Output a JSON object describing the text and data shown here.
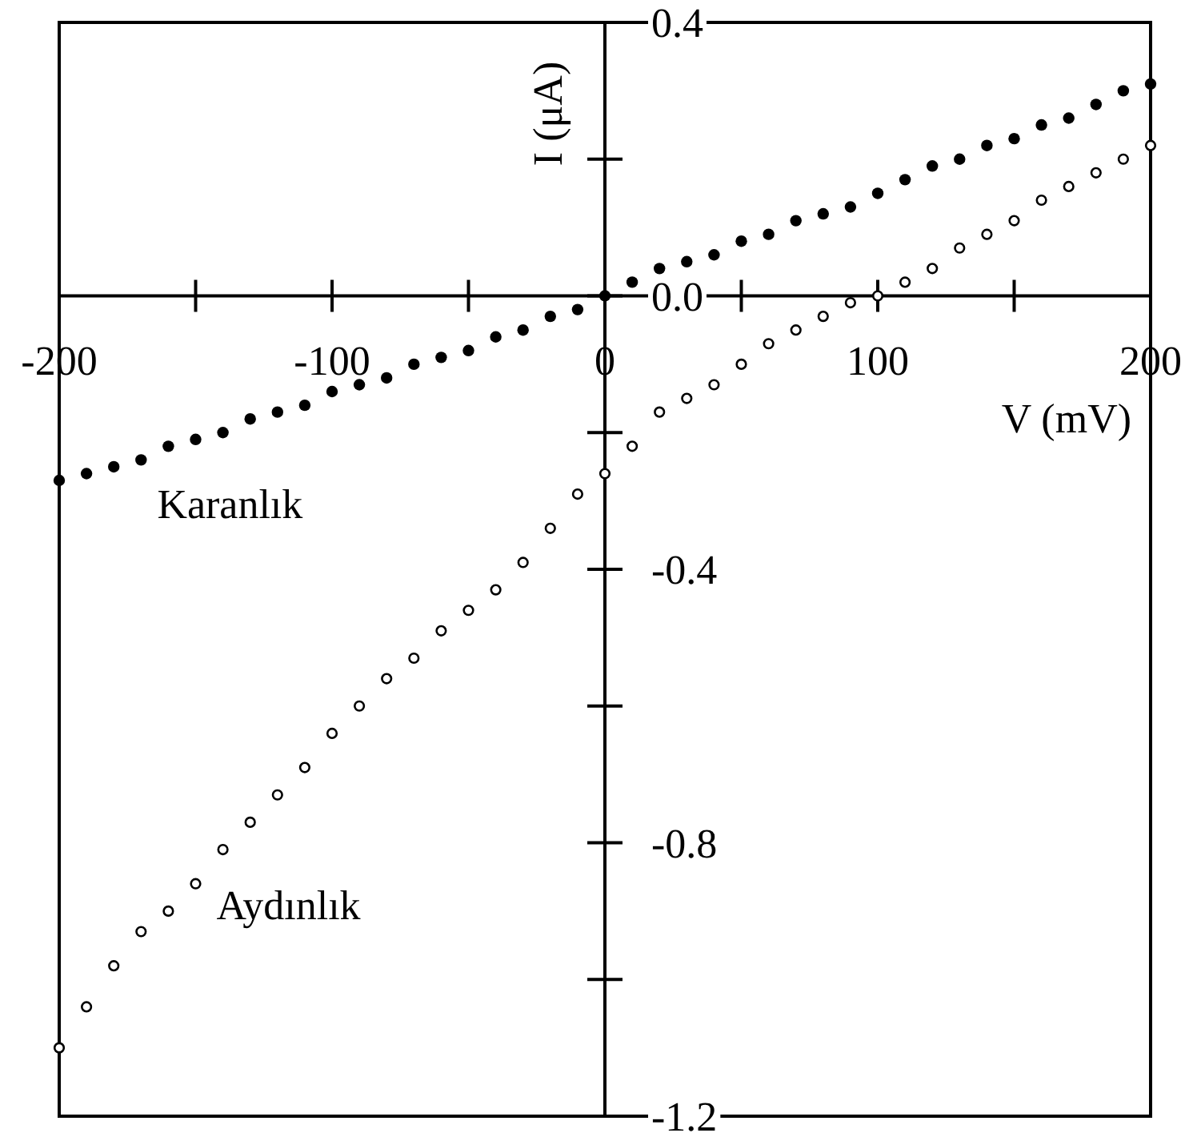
{
  "chart_data": {
    "type": "scatter",
    "xlabel": "V (mV)",
    "ylabel": "I (μA)",
    "x": [
      -200,
      -190,
      -180,
      -170,
      -160,
      -150,
      -140,
      -130,
      -120,
      -110,
      -100,
      -90,
      -80,
      -70,
      -60,
      -50,
      -40,
      -30,
      -20,
      -10,
      0,
      10,
      20,
      30,
      40,
      50,
      60,
      70,
      80,
      90,
      100,
      110,
      120,
      130,
      140,
      150,
      160,
      170,
      180,
      190,
      200
    ],
    "series": [
      {
        "name": "Karanlık",
        "color": "#000000",
        "values": [
          -0.27,
          -0.26,
          -0.25,
          -0.24,
          -0.22,
          -0.21,
          -0.2,
          -0.18,
          -0.17,
          -0.16,
          -0.14,
          -0.13,
          -0.12,
          -0.1,
          -0.09,
          -0.08,
          -0.06,
          -0.05,
          -0.03,
          -0.02,
          0.0,
          0.02,
          0.04,
          0.05,
          0.06,
          0.08,
          0.09,
          0.11,
          0.12,
          0.13,
          0.15,
          0.17,
          0.19,
          0.2,
          0.22,
          0.23,
          0.25,
          0.26,
          0.28,
          0.3,
          0.31
        ]
      },
      {
        "name": "Aydınlık",
        "color": "#000000",
        "values": [
          -1.1,
          -1.04,
          -0.98,
          -0.93,
          -0.9,
          -0.86,
          -0.81,
          -0.77,
          -0.73,
          -0.69,
          -0.64,
          -0.6,
          -0.56,
          -0.53,
          -0.49,
          -0.46,
          -0.43,
          -0.39,
          -0.34,
          -0.29,
          -0.26,
          -0.22,
          -0.17,
          -0.15,
          -0.13,
          -0.1,
          -0.07,
          -0.05,
          -0.03,
          -0.01,
          0.0,
          0.02,
          0.04,
          0.07,
          0.09,
          0.11,
          0.14,
          0.16,
          0.18,
          0.2,
          0.22
        ]
      }
    ],
    "xlim": [
      -200,
      200
    ],
    "xticks": [
      -200,
      -100,
      0,
      100,
      200
    ],
    "ylim": [
      -1.2,
      0.4
    ],
    "yticks": [
      0.4,
      {
        "value": 0,
        "label": "0.0"
      },
      -0.4,
      -0.8,
      -1.2
    ],
    "marker": "circle"
  }
}
